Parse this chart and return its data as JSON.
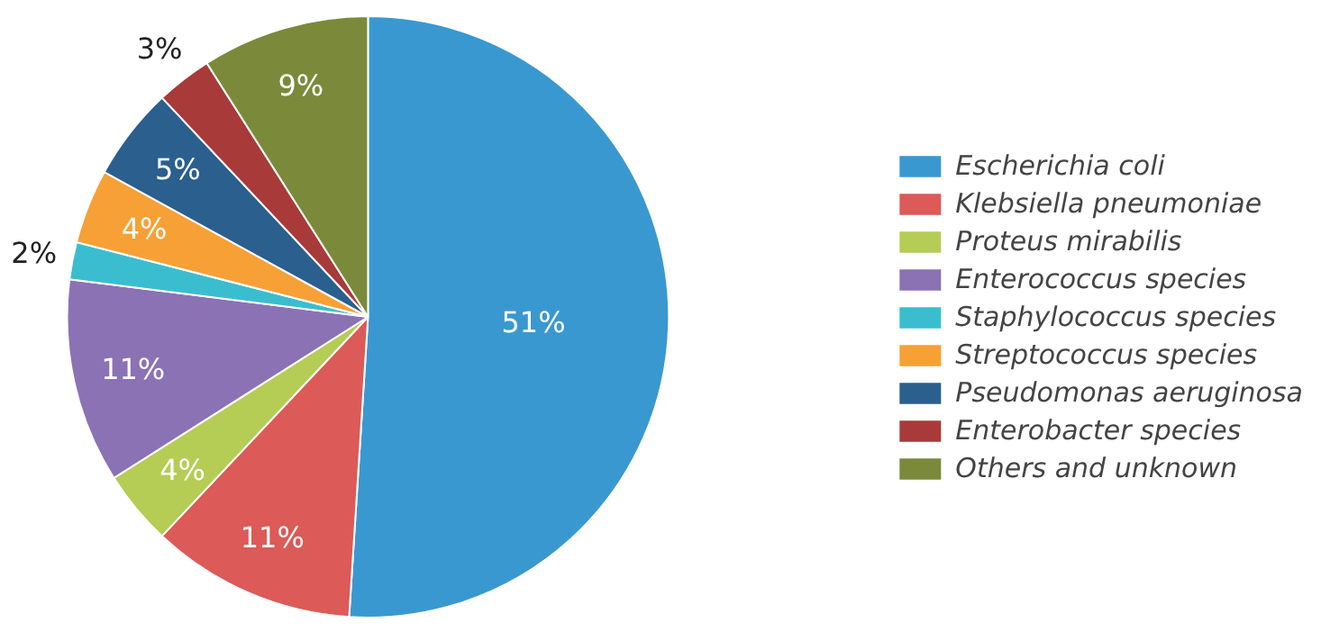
{
  "chart_data": {
    "type": "pie",
    "categories": [
      "Escherichia coli",
      "Klebsiella pneumoniae",
      "Proteus mirabilis",
      "Enterococcus species",
      "Staphylococcus species",
      "Streptococcus species",
      "Pseudomonas aeruginosa",
      "Enterobacter species",
      "Others and unknown"
    ],
    "values": [
      51,
      11,
      4,
      11,
      2,
      4,
      5,
      3,
      9
    ],
    "colors": [
      "#3a98d0",
      "#dc5a57",
      "#b5cc55",
      "#8b72b4",
      "#3bbdd0",
      "#f7a035",
      "#2a5f8e",
      "#a83a3a",
      "#7a8a3a"
    ],
    "value_labels": [
      "51%",
      "11%",
      "4%",
      "11%",
      "2%",
      "4%",
      "5%",
      "3%",
      "9%"
    ],
    "legend": "right"
  }
}
